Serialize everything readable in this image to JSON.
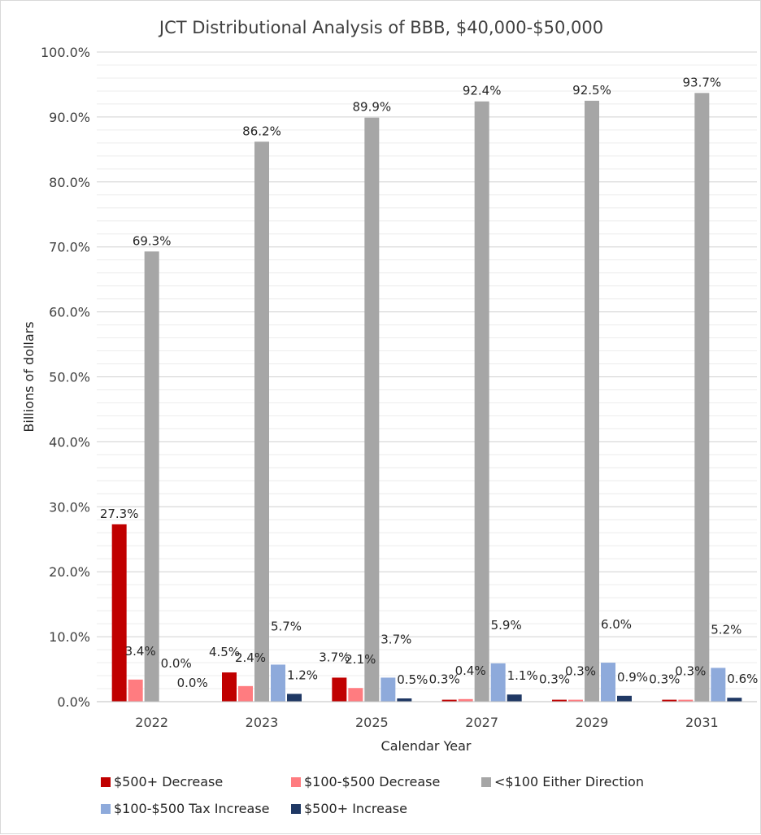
{
  "chart_data": {
    "type": "bar",
    "title": "JCT Distributional Analysis of BBB, $40,000-$50,000",
    "xlabel": "Calendar Year",
    "ylabel": "Billions of dollars",
    "categories": [
      "2022",
      "2023",
      "2025",
      "2027",
      "2029",
      "2031"
    ],
    "ylim": [
      0,
      100
    ],
    "yticks": [
      "0.0%",
      "10.0%",
      "20.0%",
      "30.0%",
      "40.0%",
      "50.0%",
      "60.0%",
      "70.0%",
      "80.0%",
      "90.0%",
      "100.0%"
    ],
    "grid": true,
    "legend_position": "bottom",
    "series": [
      {
        "name": "$500+ Decrease",
        "color": "#c00000",
        "values": [
          27.3,
          4.5,
          3.7,
          0.3,
          0.3,
          0.3
        ],
        "labels": [
          "27.3%",
          "4.5%",
          "3.7%",
          "0.3%",
          "0.3%",
          "0.3%"
        ]
      },
      {
        "name": "$100-$500 Decrease",
        "color": "#ff7c80",
        "values": [
          3.4,
          2.4,
          2.1,
          0.4,
          0.3,
          0.3
        ],
        "labels": [
          "3.4%",
          "2.4%",
          "2.1%",
          "0.4%",
          "0.3%",
          "0.3%"
        ]
      },
      {
        "name": "<$100 Either Direction",
        "color": "#a6a6a6",
        "values": [
          69.3,
          86.2,
          89.9,
          92.4,
          92.5,
          93.7
        ],
        "labels": [
          "69.3%",
          "86.2%",
          "89.9%",
          "92.4%",
          "92.5%",
          "93.7%"
        ]
      },
      {
        "name": "$100-$500 Tax Increase",
        "color": "#8eaadb",
        "values": [
          0.0,
          5.7,
          3.7,
          5.9,
          6.0,
          5.2
        ],
        "labels": [
          "0.0%",
          "5.7%",
          "3.7%",
          "5.9%",
          "6.0%",
          "5.2%"
        ]
      },
      {
        "name": "$500+ Increase",
        "color": "#1f3864",
        "values": [
          0.0,
          1.2,
          0.5,
          1.1,
          0.9,
          0.6
        ],
        "labels": [
          "0.0%",
          "1.2%",
          "0.5%",
          "1.1%",
          "0.9%",
          "0.6%"
        ]
      }
    ]
  }
}
